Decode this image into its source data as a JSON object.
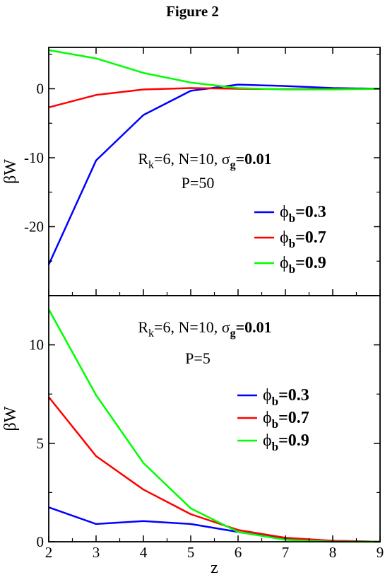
{
  "figure_title": "Figure 2",
  "chart_data": [
    {
      "type": "line",
      "panel": "top",
      "xlabel": "",
      "ylabel": "βW",
      "xlim": [
        2,
        9
      ],
      "ylim": [
        -30,
        6
      ],
      "xticks": [
        2,
        3,
        4,
        5,
        6,
        7,
        8,
        9
      ],
      "yticks": [
        0,
        -10,
        -20
      ],
      "ytick_labels": [
        "0",
        "-10",
        "-20"
      ],
      "annotation": {
        "line1": {
          "R": "R",
          "R_sub": "k",
          "mid": "=6, N=10, ",
          "sigma": "σ",
          "sigma_sub": "g",
          "value": "=0.01"
        },
        "line2": "P=50"
      },
      "legend_position": "right",
      "series": [
        {
          "color": "#0000ff",
          "legend": {
            "phi": "ϕ",
            "sub": "b",
            "value": "=0.3"
          },
          "x": [
            2,
            3,
            4,
            5,
            6,
            7,
            8,
            9
          ],
          "y": [
            -25.5,
            -10.4,
            -3.8,
            -0.3,
            0.6,
            0.4,
            0.1,
            0.0
          ]
        },
        {
          "color": "#ff0000",
          "legend": {
            "phi": "ϕ",
            "sub": "b",
            "value": "=0.7"
          },
          "x": [
            2,
            3,
            4,
            5,
            6,
            7,
            8,
            9
          ],
          "y": [
            -2.7,
            -0.9,
            -0.1,
            0.1,
            0.0,
            -0.05,
            -0.05,
            0.0
          ]
        },
        {
          "color": "#00ff00",
          "legend": {
            "phi": "ϕ",
            "sub": "b",
            "value": "=0.9"
          },
          "x": [
            2,
            3,
            4,
            5,
            6,
            7,
            8,
            9
          ],
          "y": [
            5.6,
            4.4,
            2.3,
            0.9,
            0.1,
            -0.1,
            -0.1,
            0.0
          ]
        }
      ]
    },
    {
      "type": "line",
      "panel": "bottom",
      "xlabel": "z",
      "ylabel": "βW",
      "xlim": [
        2,
        9
      ],
      "ylim": [
        0,
        12.5
      ],
      "xticks": [
        2,
        3,
        4,
        5,
        6,
        7,
        8,
        9
      ],
      "yticks": [
        0,
        5,
        10
      ],
      "ytick_labels": [
        "0",
        "5",
        "10"
      ],
      "annotation": {
        "line1": {
          "R": "R",
          "R_sub": "k",
          "mid": "=6, N=10, ",
          "sigma": "σ",
          "sigma_sub": "g",
          "value": "=0.01"
        },
        "line2": "P=5"
      },
      "legend_position": "right",
      "series": [
        {
          "color": "#0000ff",
          "legend": {
            "phi": "ϕ",
            "sub": "b",
            "value": "=0.3"
          },
          "x": [
            2,
            3,
            4,
            5,
            6,
            7,
            8,
            9
          ],
          "y": [
            1.75,
            0.9,
            1.05,
            0.9,
            0.5,
            0.15,
            0.05,
            0.0
          ]
        },
        {
          "color": "#ff0000",
          "legend": {
            "phi": "ϕ",
            "sub": "b",
            "value": "=0.7"
          },
          "x": [
            2,
            3,
            4,
            5,
            6,
            7,
            8,
            9
          ],
          "y": [
            7.35,
            4.35,
            2.65,
            1.4,
            0.6,
            0.2,
            0.05,
            0.0
          ]
        },
        {
          "color": "#00ff00",
          "legend": {
            "phi": "ϕ",
            "sub": "b",
            "value": "=0.9"
          },
          "x": [
            2,
            3,
            4,
            5,
            6,
            7,
            8,
            9
          ],
          "y": [
            11.8,
            7.45,
            4.0,
            1.7,
            0.5,
            0.1,
            0.0,
            0.0
          ]
        }
      ]
    }
  ]
}
